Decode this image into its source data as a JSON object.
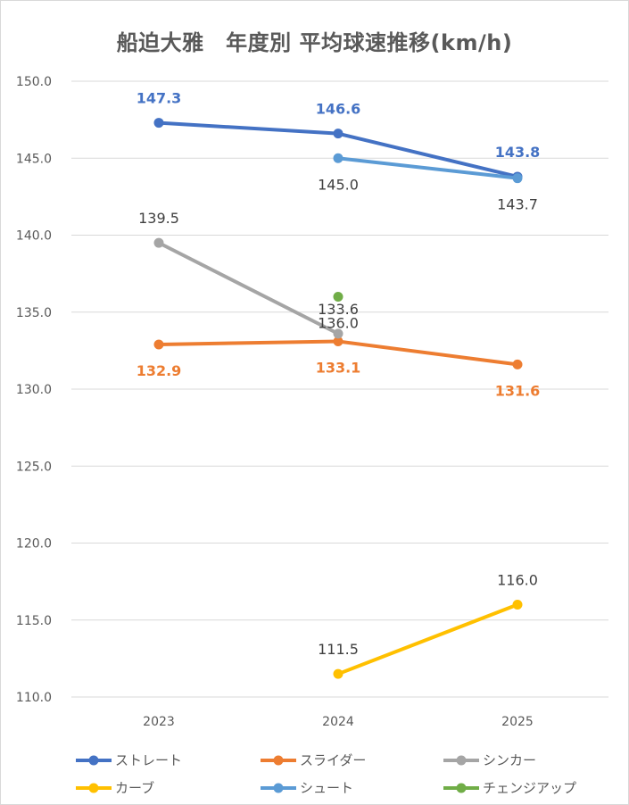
{
  "chart_data": {
    "type": "line",
    "title": "船迫大雅　年度別 平均球速推移(km/h)",
    "xlabel": "",
    "ylabel": "",
    "categories": [
      "2023",
      "2024",
      "2025"
    ],
    "ylim": [
      110.0,
      150.0
    ],
    "yticks": [
      "110.0",
      "115.0",
      "120.0",
      "125.0",
      "130.0",
      "135.0",
      "140.0",
      "145.0",
      "150.0"
    ],
    "grid": true,
    "legend_position": "bottom",
    "series": [
      {
        "name": "ストレート",
        "color": "#4472c4",
        "values": [
          147.3,
          146.6,
          143.8
        ],
        "labels": [
          "147.3",
          "146.6",
          "143.8"
        ],
        "label_color": "#4472c4",
        "label_pos": [
          "above",
          "above",
          "above"
        ]
      },
      {
        "name": "スライダー",
        "color": "#ed7d31",
        "values": [
          132.9,
          133.1,
          131.6
        ],
        "labels": [
          "132.9",
          "133.1",
          "131.6"
        ],
        "label_color": "#ed7d31",
        "label_pos": [
          "below",
          "below",
          "below"
        ]
      },
      {
        "name": "シンカー",
        "color": "#a5a5a5",
        "values": [
          139.5,
          133.6,
          null
        ],
        "labels": [
          "139.5",
          "133.6",
          null
        ],
        "label_color": "#404040",
        "label_pos": [
          "above",
          "above",
          null
        ]
      },
      {
        "name": "カーブ",
        "color": "#ffc000",
        "values": [
          null,
          111.5,
          116.0
        ],
        "labels": [
          null,
          "111.5",
          "116.0"
        ],
        "label_color": "#404040",
        "label_pos": [
          null,
          "above",
          "above"
        ]
      },
      {
        "name": "シュート",
        "color": "#5b9bd5",
        "values": [
          null,
          145.0,
          143.7
        ],
        "labels": [
          null,
          "145.0",
          "143.7"
        ],
        "label_color": "#404040",
        "label_pos": [
          null,
          "below",
          "below"
        ]
      },
      {
        "name": "チェンジアップ",
        "color": "#70ad47",
        "values": [
          null,
          136.0,
          null
        ],
        "labels": [
          null,
          "136.0",
          null
        ],
        "label_color": "#404040",
        "label_pos": [
          null,
          "below",
          null
        ]
      }
    ]
  }
}
